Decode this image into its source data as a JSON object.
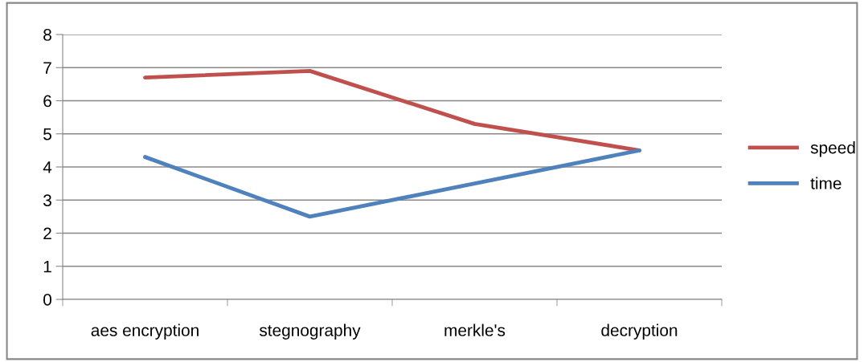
{
  "chart_data": {
    "type": "line",
    "categories": [
      "aes encryption",
      "stegnography",
      "merkle's",
      "decryption"
    ],
    "series": [
      {
        "name": "speed",
        "color": "#c0504d",
        "values": [
          6.7,
          6.9,
          5.3,
          4.5
        ]
      },
      {
        "name": "time",
        "color": "#4f81bd",
        "values": [
          4.3,
          2.5,
          3.5,
          4.5
        ]
      }
    ],
    "ylim": [
      0,
      8
    ],
    "yticks": [
      0,
      1,
      2,
      3,
      4,
      5,
      6,
      7,
      8
    ],
    "grid": "y",
    "legend": "right",
    "marker": "none",
    "line_style": "solid"
  }
}
